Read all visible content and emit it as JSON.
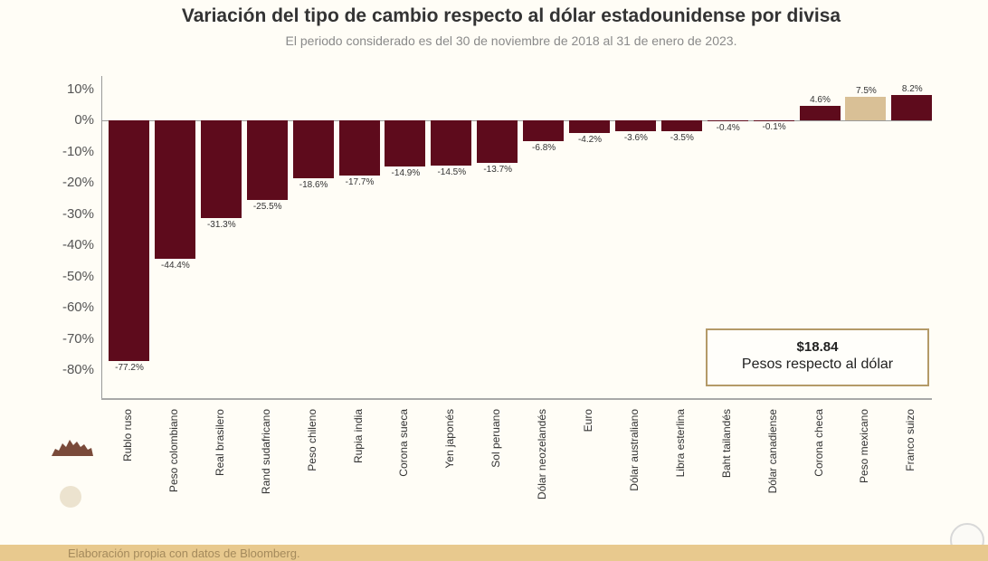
{
  "header": {
    "title": "Variación del tipo de cambio respecto al dólar estadounidense por divisa",
    "subtitle": "El periodo considerado es del 30 de noviembre de 2018 al 31 de enero de 2023."
  },
  "callout": {
    "value": "$18.84",
    "text": "Pesos respecto al dólar"
  },
  "footer": {
    "source": "Elaboración propia con datos de Bloomberg."
  },
  "colors": {
    "bar": "#5e0b1c",
    "highlight": "#d9c096",
    "footer": "#e8c98e"
  },
  "y_ticks": [
    "10%",
    "0%",
    "-10%",
    "-20%",
    "-30%",
    "-40%",
    "-50%",
    "-60%",
    "-70%",
    "-80%"
  ],
  "chart_data": {
    "type": "bar",
    "title": "Variación del tipo de cambio respecto al dólar estadounidense por divisa",
    "subtitle": "El periodo considerado es del 30 de noviembre de 2018 al 31 de enero de 2023.",
    "xlabel": "",
    "ylabel": "",
    "ylim": [
      -80,
      10
    ],
    "grid": false,
    "categories": [
      "Rublo ruso",
      "Peso colombiano",
      "Real brasilero",
      "Rand sudafricano",
      "Peso chileno",
      "Rupia india",
      "Corona sueca",
      "Yen japonés",
      "Sol peruano",
      "Dólar neozelandés",
      "Euro",
      "Dólar australiano",
      "Libra esterlina",
      "Baht tailandés",
      "Dólar canadiense",
      "Corona checa",
      "Peso mexicano",
      "Franco suizo"
    ],
    "values": [
      -77.2,
      -44.4,
      -31.3,
      -25.5,
      -18.6,
      -17.7,
      -14.9,
      -14.5,
      -13.7,
      -6.8,
      -4.2,
      -3.6,
      -3.5,
      -0.4,
      -0.1,
      4.6,
      7.5,
      8.2
    ],
    "labels": [
      "-77.2%",
      "-44.4%",
      "-31.3%",
      "-25.5%",
      "-18.6%",
      "-17.7%",
      "-14.9%",
      "-14.5%",
      "-13.7%",
      "-6.8%",
      "-4.2%",
      "-3.6%",
      "-3.5%",
      "-0.4%",
      "-0.1%",
      "4.6%",
      "7.5%",
      "8.2%"
    ],
    "highlight": "Peso mexicano",
    "annotation": "$18.84 Pesos respecto al dólar",
    "source": "Elaboración propia con datos de Bloomberg."
  }
}
